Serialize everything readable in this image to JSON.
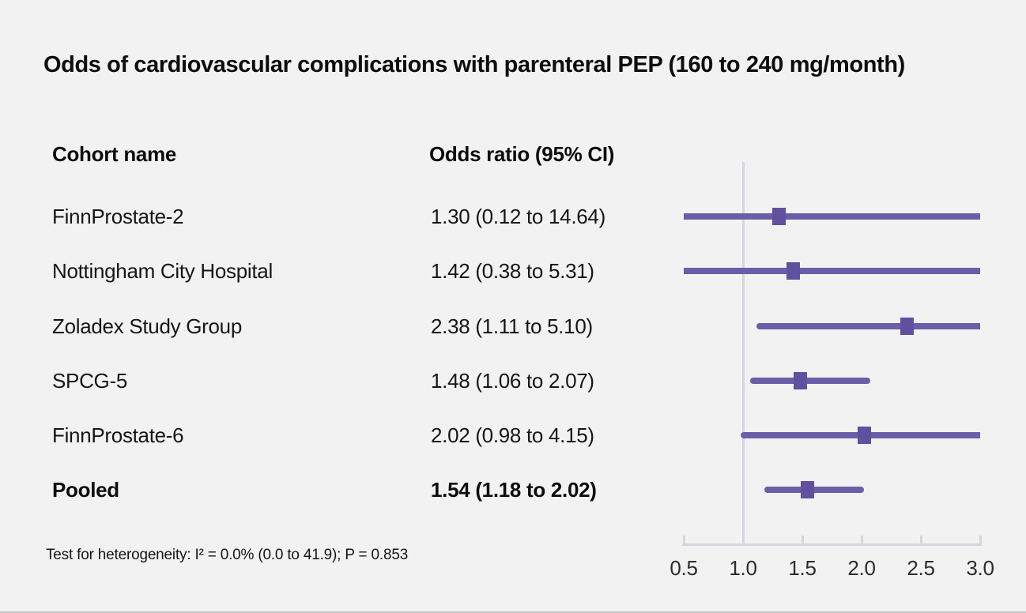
{
  "title": "Odds of cardiovascular complications with parenteral PEP (160 to 240 mg/month)",
  "table": {
    "col1_header": "Cohort name",
    "col2_header": "Odds ratio (95% CI)"
  },
  "footnote": "Test for heterogeneity: I² = 0.0% (0.0 to 41.9); P = 0.853",
  "colors": {
    "ci_line": "#6b5ea8",
    "marker": "#5f519f",
    "reference_line": "#d4d7df",
    "axis": "#d4d7df",
    "background": "#f2f2f2"
  },
  "chart_data": {
    "type": "forest",
    "title": "Odds of cardiovascular complications with parenteral PEP (160 to 240 mg/month)",
    "xlabel": "",
    "x_ticks": [
      0.5,
      1.0,
      1.5,
      2.0,
      2.5,
      3.0
    ],
    "xlim": [
      0.5,
      3.0
    ],
    "reference_line": 1.0,
    "rows": [
      {
        "label": "FinnProstate-2",
        "or": 1.3,
        "ci_low": 0.12,
        "ci_high": 14.64,
        "pooled": false,
        "or_ci_text": "1.30 (0.12 to 14.64)"
      },
      {
        "label": "Nottingham City Hospital",
        "or": 1.42,
        "ci_low": 0.38,
        "ci_high": 5.31,
        "pooled": false,
        "or_ci_text": "1.42 (0.38 to 5.31)"
      },
      {
        "label": "Zoladex Study Group",
        "or": 2.38,
        "ci_low": 1.11,
        "ci_high": 5.1,
        "pooled": false,
        "or_ci_text": "2.38 (1.11 to 5.10)"
      },
      {
        "label": "SPCG-5",
        "or": 1.48,
        "ci_low": 1.06,
        "ci_high": 2.07,
        "pooled": false,
        "or_ci_text": "1.48 (1.06 to 2.07)"
      },
      {
        "label": "FinnProstate-6",
        "or": 2.02,
        "ci_low": 0.98,
        "ci_high": 4.15,
        "pooled": false,
        "or_ci_text": "2.02 (0.98 to 4.15)"
      },
      {
        "label": "Pooled",
        "or": 1.54,
        "ci_low": 1.18,
        "ci_high": 2.02,
        "pooled": true,
        "or_ci_text": "1.54 (1.18 to 2.02)"
      }
    ],
    "footnote": "Test for heterogeneity: I² = 0.0% (0.0 to 41.9); P = 0.853"
  }
}
